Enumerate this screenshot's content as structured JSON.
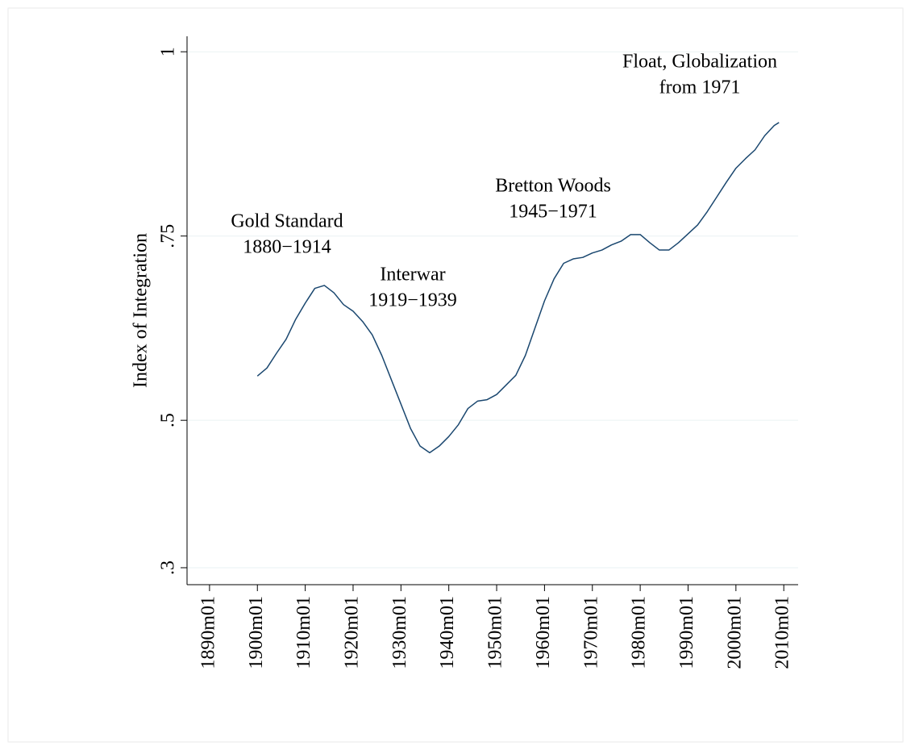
{
  "chart_data": {
    "type": "line",
    "y_label": "Index of Integration",
    "x": [
      1900,
      1902,
      1904,
      1906,
      1908,
      1910,
      1912,
      1914,
      1916,
      1918,
      1920,
      1922,
      1924,
      1926,
      1928,
      1930,
      1932,
      1934,
      1936,
      1938,
      1940,
      1942,
      1944,
      1946,
      1948,
      1950,
      1952,
      1954,
      1956,
      1958,
      1960,
      1962,
      1964,
      1966,
      1968,
      1970,
      1972,
      1974,
      1976,
      1978,
      1980,
      1982,
      1984,
      1986,
      1988,
      1990,
      1992,
      1994,
      1996,
      1998,
      2000,
      2002,
      2004,
      2006,
      2008,
      2009
    ],
    "series": [
      {
        "color": "#1a476f",
        "values": [
          0.56,
          0.571,
          0.591,
          0.61,
          0.637,
          0.659,
          0.679,
          0.683,
          0.673,
          0.657,
          0.648,
          0.634,
          0.616,
          0.588,
          0.555,
          0.522,
          0.489,
          0.465,
          0.456,
          0.465,
          0.478,
          0.494,
          0.516,
          0.526,
          0.528,
          0.535,
          0.548,
          0.561,
          0.588,
          0.625,
          0.662,
          0.692,
          0.713,
          0.719,
          0.721,
          0.727,
          0.731,
          0.738,
          0.743,
          0.752,
          0.752,
          0.741,
          0.731,
          0.731,
          0.741,
          0.753,
          0.765,
          0.783,
          0.803,
          0.823,
          0.842,
          0.855,
          0.867,
          0.886,
          0.9,
          0.904
        ]
      }
    ],
    "xlim": [
      1885.3,
      2013.0
    ],
    "xticks": [
      {
        "value": 1890,
        "label": "1890m01"
      },
      {
        "value": 1900,
        "label": "1900m01"
      },
      {
        "value": 1910,
        "label": "1910m01"
      },
      {
        "value": 1920,
        "label": "1920m01"
      },
      {
        "value": 1930,
        "label": "1930m01"
      },
      {
        "value": 1940,
        "label": "1940m01"
      },
      {
        "value": 1950,
        "label": "1950m01"
      },
      {
        "value": 1960,
        "label": "1960m01"
      },
      {
        "value": 1970,
        "label": "1970m01"
      },
      {
        "value": 1980,
        "label": "1980m01"
      },
      {
        "value": 1990,
        "label": "1990m01"
      },
      {
        "value": 2000,
        "label": "2000m01"
      },
      {
        "value": 2010,
        "label": "2010m01"
      }
    ],
    "ylim": [
      0.277,
      1.021
    ],
    "yticks": [
      {
        "value": 0.3,
        "label": ".3"
      },
      {
        "value": 0.5,
        "label": ".5"
      },
      {
        "value": 0.75,
        "label": ".75"
      },
      1
    ],
    "grid": true,
    "annotations": [
      [
        "Gold Standard",
        "1880−1914"
      ],
      [
        "Interwar",
        "1919−1939"
      ],
      [
        "Bretton Woods",
        "1945−1971"
      ],
      [
        "Float, Globalization",
        "from 1971"
      ]
    ]
  }
}
